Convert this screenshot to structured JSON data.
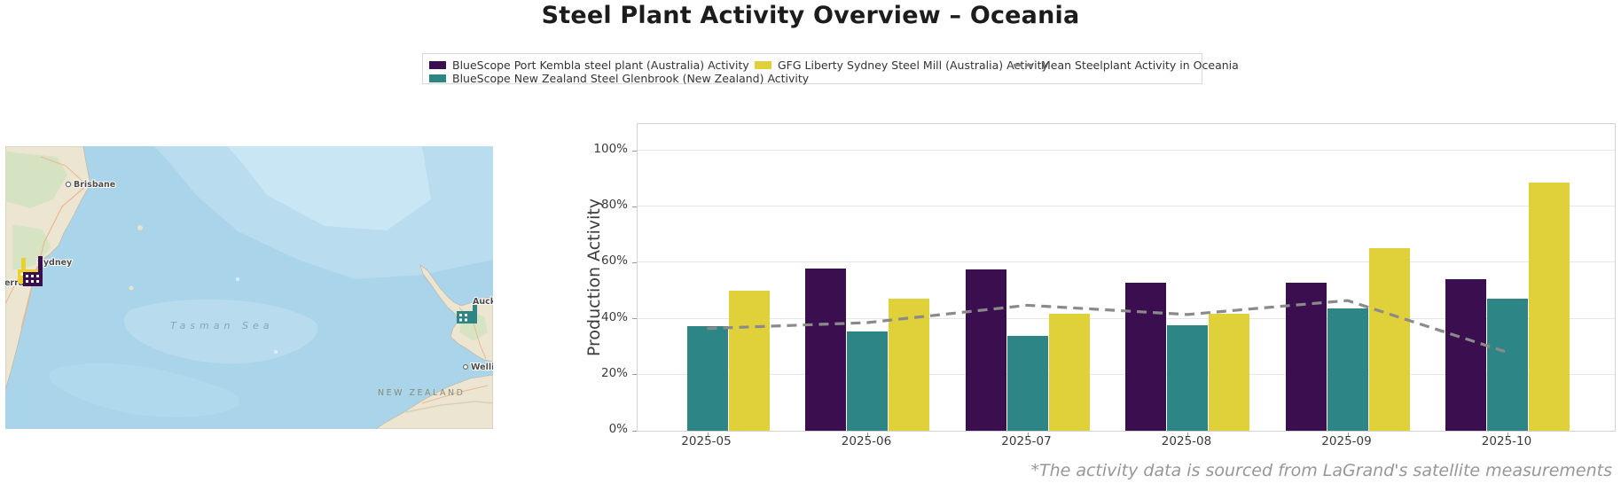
{
  "title": "Steel Plant Activity Overview – Oceania",
  "legend": {
    "entries": [
      {
        "label": "BlueScope Port Kembla steel plant (Australia) Activity",
        "color": "#3a0e4f",
        "type": "patch"
      },
      {
        "label": "BlueScope New Zealand Steel Glenbrook (New Zealand) Activity",
        "color": "#2d8585",
        "type": "patch"
      },
      {
        "label": "GFG Liberty Sydney Steel Mill (Australia) Activity",
        "color": "#e0d13a",
        "type": "patch"
      },
      {
        "label": "Mean Steelplant Activity in Oceania",
        "color": "#8a8a8a",
        "type": "dashed-line"
      }
    ]
  },
  "map": {
    "labels": {
      "brisbane": "Brisbane",
      "sydney": "Sydney",
      "canberra": "Canberra",
      "auckland": "Auckland",
      "wellington": "Wellington",
      "tasman_sea": "Tasman Sea",
      "new_zealand": "NEW ZEALAND"
    },
    "plants": [
      {
        "name": "GFG Liberty Sydney Steel Mill",
        "color": "#e8d22f"
      },
      {
        "name": "BlueScope Port Kembla steel plant",
        "color": "#3a0e4f"
      },
      {
        "name": "BlueScope New Zealand Steel Glenbrook",
        "color": "#2d8585"
      }
    ]
  },
  "chart_data": {
    "type": "bar",
    "categories": [
      "2025-05",
      "2025-06",
      "2025-07",
      "2025-08",
      "2025-09",
      "2025-10"
    ],
    "series": [
      {
        "name": "BlueScope Port Kembla steel plant (Australia) Activity",
        "color": "#3a0e4f",
        "values": [
          null,
          58,
          57.5,
          53,
          53,
          54
        ]
      },
      {
        "name": "BlueScope New Zealand Steel Glenbrook (New Zealand) Activity",
        "color": "#2d8585",
        "values": [
          37.3,
          35.4,
          34,
          37.8,
          43.6,
          47
        ]
      },
      {
        "name": "GFG Liberty Sydney Steel Mill (Australia) Activity",
        "color": "#e0d13a",
        "values": [
          49.9,
          47,
          41.8,
          41.9,
          65.2,
          88.6
        ]
      }
    ],
    "line": {
      "name": "Mean Steelplant Activity in Oceania",
      "color": "#8a8a8a",
      "values": [
        36.5,
        38.6,
        44.8,
        41.5,
        46.5,
        28
      ]
    },
    "title": "Steel Plant Activity Overview – Oceania",
    "xlabel": "",
    "ylabel": "Production Activity",
    "ylim": [
      0,
      100
    ],
    "yticks": [
      0,
      20,
      40,
      60,
      80,
      100
    ],
    "ytick_suffix": "%",
    "grid": true,
    "legend_position": "top"
  },
  "footnote": "*The activity data is sourced from LaGrand's satellite measurements"
}
